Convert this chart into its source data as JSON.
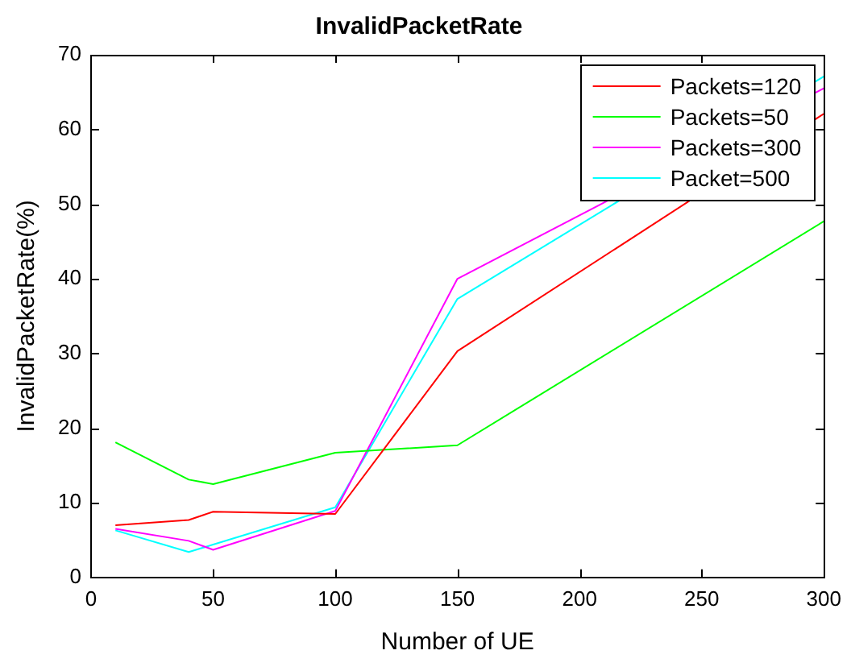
{
  "chart_data": {
    "type": "line",
    "title": "InvalidPacketRate",
    "xlabel": "Number of UE",
    "ylabel": "InvalidPacketRate(%)",
    "x": [
      10,
      40,
      50,
      100,
      150,
      300
    ],
    "series": [
      {
        "name": "Packets=120",
        "color": "#ff0000",
        "values": [
          7.0,
          7.7,
          8.8,
          8.5,
          30.3,
          62.1
        ]
      },
      {
        "name": "Packets=50",
        "color": "#00ff00",
        "values": [
          18.1,
          13.1,
          12.5,
          16.7,
          17.7,
          47.7
        ]
      },
      {
        "name": "Packets=300",
        "color": "#ff00ff",
        "values": [
          6.5,
          4.9,
          3.7,
          8.9,
          40.0,
          65.5
        ]
      },
      {
        "name": "Packet=500",
        "color": "#00ffff",
        "values": [
          6.3,
          3.4,
          4.4,
          9.4,
          37.3,
          67.1
        ]
      }
    ],
    "xlim": [
      0,
      300
    ],
    "xticks": [
      0,
      50,
      100,
      150,
      200,
      250,
      300
    ],
    "ylim": [
      0,
      70
    ],
    "yticks": [
      0,
      10,
      20,
      30,
      40,
      50,
      60,
      70
    ],
    "grid": false,
    "legend": "top right",
    "marker": "none",
    "line_style": "solid"
  }
}
